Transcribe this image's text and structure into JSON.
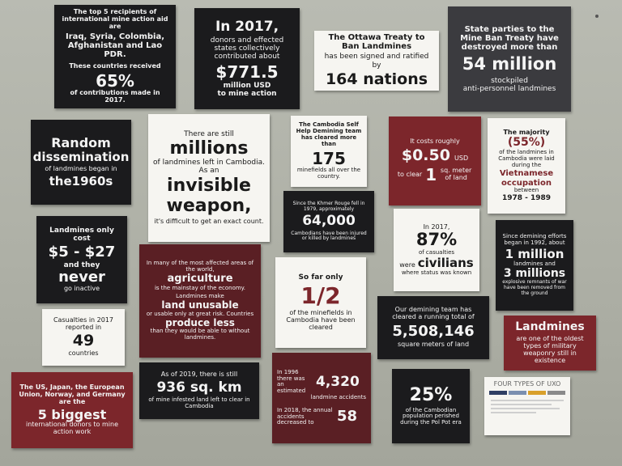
{
  "cards": {
    "recipients": {
      "line1": "The top 5 recipients of international mine action aid are",
      "line2": "Iraq, Syria, Colombia, Afghanistan and Lao PDR.",
      "line3": "These countries received",
      "big": "65%",
      "line4": "of contributions made in 2017."
    },
    "donors2017": {
      "line1": "In 2017,",
      "line2": "donors and effected states collectively contributed about",
      "big": "$771.5",
      "line3": "million USD",
      "line4": "to mine action"
    },
    "ottawa": {
      "line1": "The Ottawa Treaty to Ban Landmines",
      "line2": "has been signed and ratified by",
      "big": "164 nations"
    },
    "stockpile": {
      "line1": "State parties to the Mine Ban Treaty have destroyed more than",
      "big": "54 million",
      "line2": "stockpiled",
      "line3": "anti-personnel landmines"
    },
    "random": {
      "line1": "Random",
      "line2": "dissemination",
      "line3": "of landmines began in",
      "line4": "the1960s"
    },
    "millions": {
      "line1": "There are still",
      "big": "millions",
      "line2": "of landmines left in Cambodia. As an",
      "big2": "invisible",
      "big3": "weapon,",
      "line3": "it's difficult to get an exact count."
    },
    "selfhelp": {
      "line1": "The Cambodia Self Help Demining team has cleared more than",
      "big": "175",
      "line2": "minefields all over the country."
    },
    "cost": {
      "line1": "It costs roughly",
      "big": "$0.50",
      "unit": "USD",
      "line2": "to clear",
      "big2": "1",
      "line3": "sq. meter of land"
    },
    "majority": {
      "line1": "The majority",
      "big": "(55%)",
      "line2": "of the landmines in Cambodia were laid during the",
      "big2": "Vietnamese occupation",
      "line3": "between",
      "line4": "1978 - 1989"
    },
    "khmer": {
      "line1": "Since the Khmer Rouge fell in 1979, approximately",
      "big": "64,000",
      "line2": "Cambodians have been injured or killed by landmines"
    },
    "cheap": {
      "line1": "Landmines only cost",
      "big": "$5 - $27",
      "line2": "and they",
      "big2": "never",
      "line3": "go inactive"
    },
    "agriculture": {
      "line1": "In many of the most affected areas of the world,",
      "big": "agriculture",
      "line2": "is the mainstay of the economy.",
      "line3": "Landmines make",
      "big2": "land unusable",
      "line4": "or usable only at great risk. Countries",
      "big3": "produce less",
      "line5": "than they would be able to without landmines."
    },
    "half": {
      "line1": "So far only",
      "big": "1/2",
      "line2": "of the minefields in Cambodia have been cleared"
    },
    "civilians": {
      "line1": "In 2017,",
      "big": "87%",
      "line2": "of casualties",
      "line3": "were",
      "big2": "civilians",
      "line4": "where status was known"
    },
    "since1992": {
      "line1": "Since demining efforts began in 1992, about",
      "big": "1 million",
      "line2": "landmines and",
      "big2": "3 millions",
      "line3": "explosive remnants of war have been removed from the ground"
    },
    "casualties": {
      "line1": "Casualties in 2017 reported in",
      "big": "49",
      "line2": "countries"
    },
    "infested": {
      "line1": "As of 2019, there is still",
      "big": "936 sq. km",
      "line2": "of mine infested land left to clear in Cambodia"
    },
    "running": {
      "line1": "Our demining team has cleared a running total of",
      "big": "5,508,146",
      "line2": "square meters of land"
    },
    "oldest": {
      "big": "Landmines",
      "line1": "are one of the oldest types of military weaponry still in existence"
    },
    "donors5": {
      "line1": "The US, Japan, the European Union, Norway, and Germany are the",
      "big": "5 biggest",
      "line2": "international donors to mine action work"
    },
    "accidents": {
      "line1": "In 1996 there was an estimated",
      "big": "4,320",
      "line2": "landmine accidents",
      "line3": "In 2018, the annual accidents decreased to",
      "big2": "58"
    },
    "polpot": {
      "big": "25%",
      "line1": "of the Cambodian population perished during the Pol Pot era"
    },
    "uxo": {
      "title": "FOUR TYPES OF UXO"
    }
  },
  "colors": {
    "wall": "#b2b4aa",
    "black_card": "#1b1b1d",
    "maroon_card": "#5a1f24",
    "red_card": "#7c262b",
    "white_card": "#f6f5f1",
    "uxo_col1": "#2f3e63",
    "uxo_col2": "#7b8fb0",
    "uxo_col3": "#d9a02a",
    "uxo_col4": "#8a8a8a"
  }
}
